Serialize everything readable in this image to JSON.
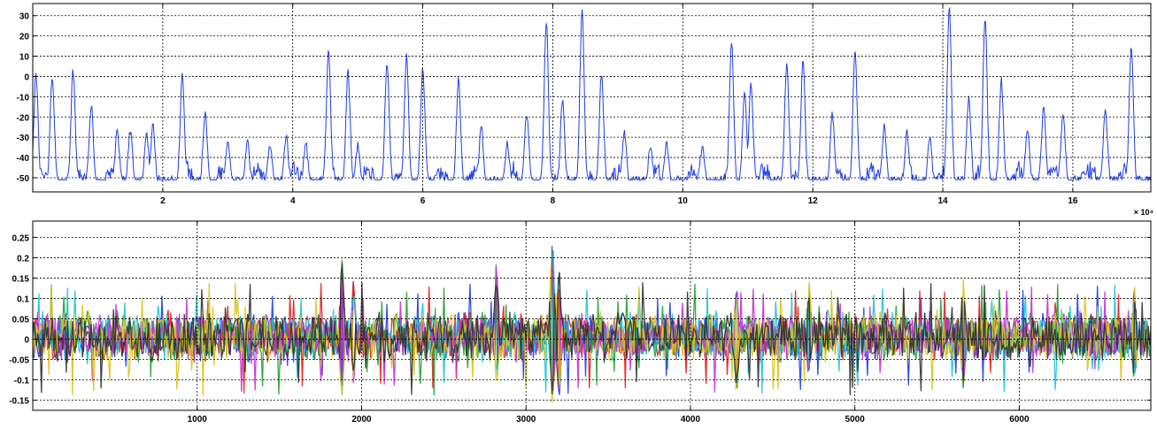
{
  "chart_data": [
    {
      "type": "line",
      "title": "",
      "xlabel": "",
      "ylabel": "",
      "grid": true,
      "xlim": [
        0,
        17.2
      ],
      "ylim": [
        -57,
        36
      ],
      "x_multiplier_label": "× 10⁴",
      "x_ticks": [
        2,
        4,
        6,
        8,
        10,
        12,
        14,
        16
      ],
      "x_tick_labels": [
        "2",
        "4",
        "6",
        "8",
        "10",
        "12",
        "14",
        "16"
      ],
      "y_ticks": [
        30,
        20,
        10,
        0,
        -10,
        -20,
        -30,
        -40,
        -50
      ],
      "y_tick_labels": [
        "30",
        "20",
        "10",
        "0",
        "-10",
        "-20",
        "-30",
        "-40",
        "-50"
      ],
      "baseline": -53,
      "peaks": [
        [
          0.05,
          1
        ],
        [
          0.3,
          0
        ],
        [
          0.62,
          3
        ],
        [
          0.9,
          -15
        ],
        [
          1.3,
          -27
        ],
        [
          1.5,
          -27
        ],
        [
          1.75,
          -28
        ],
        [
          1.85,
          -24
        ],
        [
          2.3,
          0
        ],
        [
          2.65,
          -18
        ],
        [
          3.0,
          -33
        ],
        [
          3.3,
          -32
        ],
        [
          3.65,
          -33
        ],
        [
          3.9,
          -30
        ],
        [
          4.2,
          -33
        ],
        [
          4.55,
          15
        ],
        [
          4.85,
          2
        ],
        [
          5.0,
          -34
        ],
        [
          5.45,
          6
        ],
        [
          5.75,
          10
        ],
        [
          6.0,
          5
        ],
        [
          6.55,
          -2
        ],
        [
          6.9,
          -25
        ],
        [
          7.3,
          -33
        ],
        [
          7.6,
          -18
        ],
        [
          7.9,
          28
        ],
        [
          8.15,
          -12
        ],
        [
          8.45,
          34
        ],
        [
          8.75,
          2
        ],
        [
          9.1,
          -28
        ],
        [
          9.5,
          -35
        ],
        [
          9.75,
          -33
        ],
        [
          10.3,
          -35
        ],
        [
          10.75,
          17
        ],
        [
          10.95,
          -8
        ],
        [
          11.05,
          -4
        ],
        [
          11.6,
          7
        ],
        [
          11.85,
          8
        ],
        [
          12.3,
          -18
        ],
        [
          12.65,
          13
        ],
        [
          13.1,
          -25
        ],
        [
          13.45,
          -28
        ],
        [
          13.8,
          -31
        ],
        [
          14.1,
          33
        ],
        [
          14.4,
          -10
        ],
        [
          14.65,
          28
        ],
        [
          14.9,
          -2
        ],
        [
          15.3,
          -26
        ],
        [
          15.55,
          -16
        ],
        [
          15.85,
          -17
        ],
        [
          16.15,
          -46
        ],
        [
          16.5,
          -17
        ],
        [
          16.9,
          15
        ]
      ],
      "series": [
        {
          "color": "#1f3fe6"
        }
      ]
    },
    {
      "type": "line",
      "title": "",
      "xlabel": "",
      "ylabel": "",
      "grid": true,
      "xlim": [
        0,
        6800
      ],
      "ylim": [
        -0.175,
        0.29
      ],
      "x_ticks": [
        1000,
        2000,
        3000,
        4000,
        5000,
        6000
      ],
      "x_tick_labels": [
        "1000",
        "2000",
        "3000",
        "4000",
        "5000",
        "6000"
      ],
      "y_ticks": [
        0.25,
        0.2,
        0.15,
        0.1,
        0.05,
        0,
        -0.05,
        -0.1,
        -0.15
      ],
      "y_tick_labels": [
        "0.25",
        "0.2",
        "0.15",
        "0.1",
        "0.05",
        "0",
        "-0.05",
        "-0.1",
        "-0.15"
      ],
      "bursts": [
        [
          1880,
          0.22,
          -0.15
        ],
        [
          1950,
          0.15,
          -0.12
        ],
        [
          2820,
          0.2,
          -0.12
        ],
        [
          3160,
          0.29,
          -0.17
        ],
        [
          3200,
          0.22,
          -0.16
        ],
        [
          4280,
          0.14,
          -0.15
        ],
        [
          4720,
          0.16,
          -0.1
        ],
        [
          5660,
          0.16,
          -0.13
        ],
        [
          6700,
          0.14,
          -0.12
        ]
      ],
      "series": [
        {
          "color": "#1f3fe6"
        },
        {
          "color": "#e61e1e"
        },
        {
          "color": "#22a02c"
        },
        {
          "color": "#18c7d6"
        },
        {
          "color": "#c82fd6"
        },
        {
          "color": "#d8c51a"
        },
        {
          "color": "#303030"
        }
      ]
    }
  ]
}
